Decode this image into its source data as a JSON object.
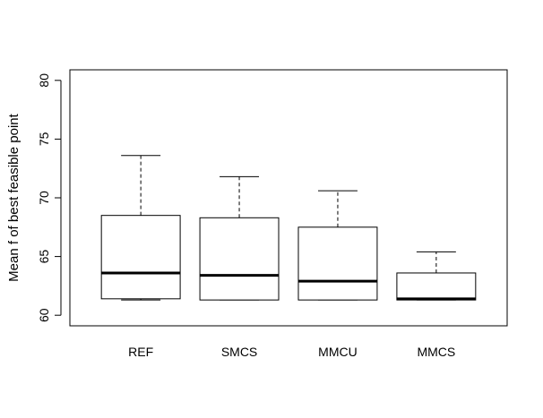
{
  "chart_data": {
    "type": "boxplot",
    "title": "",
    "xlabel": "",
    "ylabel": "Mean f of best feasible point",
    "ylim": [
      59.1,
      80.9
    ],
    "yticks": [
      60,
      65,
      70,
      75,
      80
    ],
    "grid": false,
    "legend": "none",
    "categories": [
      "REF",
      "SMCS",
      "MMCU",
      "MMCS"
    ],
    "boxes": [
      {
        "name": "REF",
        "min": 61.3,
        "q1": 61.4,
        "median": 63.6,
        "q3": 68.5,
        "max": 73.6
      },
      {
        "name": "SMCS",
        "min": 61.3,
        "q1": 61.3,
        "median": 63.4,
        "q3": 68.3,
        "max": 71.8
      },
      {
        "name": "MMCU",
        "min": 61.3,
        "q1": 61.3,
        "median": 62.9,
        "q3": 67.5,
        "max": 70.6
      },
      {
        "name": "MMCS",
        "min": 61.3,
        "q1": 61.3,
        "median": 61.4,
        "q3": 63.6,
        "max": 65.4
      }
    ],
    "colors": {
      "box_fill": "#ffffff",
      "stroke": "#000000",
      "background": "#ffffff"
    }
  }
}
